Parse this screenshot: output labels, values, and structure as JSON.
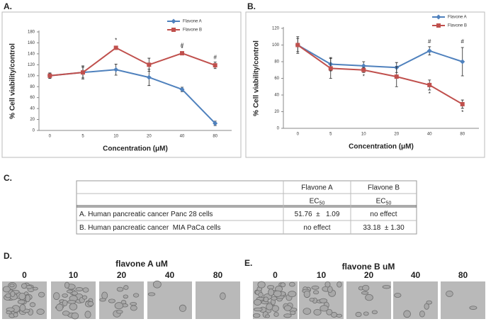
{
  "chart_data": [
    {
      "type": "line",
      "panel": "A.",
      "ylabel": "% Cell viability/control",
      "xlabel": "Concentration (μM)",
      "categories": [
        "0",
        "5",
        "10",
        "20",
        "40",
        "80"
      ],
      "ylim": [
        0,
        180
      ],
      "yticks": [
        0,
        20,
        40,
        60,
        80,
        100,
        120,
        140,
        160,
        180
      ],
      "legend": "top-right",
      "series": [
        {
          "name": "Flavone A",
          "color": "#4f81bd",
          "marker": "diamond",
          "values": [
            100,
            106,
            111,
            97,
            75,
            13
          ],
          "errors": [
            5,
            10,
            10,
            15,
            4,
            4
          ]
        },
        {
          "name": "Flavone B",
          "color": "#c0504d",
          "marker": "square",
          "values": [
            100,
            106,
            151,
            120,
            141,
            119
          ],
          "errors": [
            5,
            12,
            3,
            12,
            3,
            6
          ]
        }
      ],
      "annotations": [
        {
          "text": "*",
          "x": "10",
          "y": 164
        },
        {
          "text": "#",
          "x": "40",
          "y": 155
        },
        {
          "text": "*",
          "x": "40",
          "y": 149
        },
        {
          "text": "#",
          "x": "80",
          "y": 133
        }
      ]
    },
    {
      "type": "line",
      "panel": "B.",
      "ylabel": "% Cell viability/control",
      "xlabel": "Concentration (μM)",
      "categories": [
        "0",
        "5",
        "10",
        "20",
        "40",
        "80"
      ],
      "ylim": [
        0,
        120
      ],
      "yticks": [
        0,
        20,
        40,
        60,
        80,
        100,
        120
      ],
      "legend": "top-right",
      "series": [
        {
          "name": "Flavone A",
          "color": "#4f81bd",
          "marker": "diamond",
          "values": [
            100,
            77,
            75,
            73,
            93,
            80
          ],
          "errors": [
            10,
            8,
            5,
            6,
            5,
            17
          ]
        },
        {
          "name": "Flavone B",
          "color": "#c0504d",
          "marker": "square",
          "values": [
            100,
            72,
            70,
            62,
            52,
            29
          ],
          "errors": [
            8,
            12,
            3,
            12,
            6,
            5
          ]
        }
      ],
      "annotations": [
        {
          "text": "*",
          "x": "10",
          "y": 62
        },
        {
          "text": "#",
          "x": "40",
          "y": 104
        },
        {
          "text": "*",
          "x": "40",
          "y": 41
        },
        {
          "text": "#",
          "x": "80",
          "y": 104
        },
        {
          "text": "*",
          "x": "80",
          "y": 19
        }
      ]
    }
  ],
  "table": {
    "panel": "C.",
    "header": [
      [
        "",
        "Flavone A",
        "Flavone B"
      ],
      [
        "",
        {
          "text": "EC",
          "sub": "50"
        },
        {
          "text": "EC",
          "sub": "50"
        }
      ]
    ],
    "rows": [
      [
        "A. Human pancreatic cancer Panc 28 cells",
        "51.76  ±   1.09",
        "no effect"
      ],
      [
        "B. Human pancreatic cancer  MIA PaCa cells",
        "no effect",
        "33.18  ± 1.30"
      ]
    ]
  },
  "images": [
    {
      "panel": "D.",
      "title": "flavone A uM",
      "labels": [
        "0",
        "10",
        "20",
        "40",
        "80"
      ]
    },
    {
      "panel": "E.",
      "title": "flavone B uM",
      "labels": [
        "0",
        "10",
        "20",
        "40",
        "80"
      ]
    }
  ]
}
